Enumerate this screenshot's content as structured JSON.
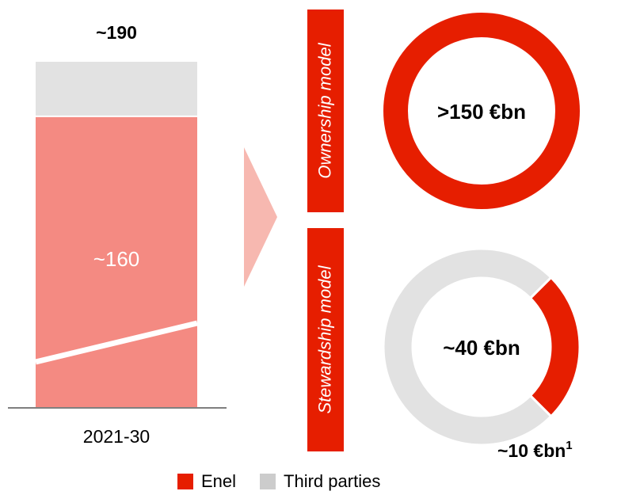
{
  "colors": {
    "enel": "#e61e00",
    "third_parties": "#e2e2e2",
    "bar_enel_share": "#f48a82"
  },
  "chart_data": [
    {
      "type": "bar",
      "categories": [
        "2021-30"
      ],
      "series": [
        {
          "name": "",
          "values": [
            160
          ]
        },
        {
          "name": "",
          "values": [
            30
          ]
        }
      ],
      "data_labels": [
        "~160"
      ],
      "total_label": "~190",
      "ylim": [
        0,
        190
      ]
    },
    {
      "type": "pie",
      "tag": "Ownership model",
      "center_label": ">150 €bn",
      "slices": [
        {
          "name": "Enel",
          "value": 150
        }
      ]
    },
    {
      "type": "pie",
      "tag": "Stewardship model",
      "center_label": "~40 €bn",
      "slices": [
        {
          "name": "Enel",
          "value": 10,
          "label": "~10 €bn",
          "footnote": "1"
        },
        {
          "name": "Third parties",
          "value": 30
        }
      ]
    }
  ],
  "legend": [
    {
      "name": "Enel",
      "color": "#e61e00"
    },
    {
      "name": "Third parties",
      "color": "#cccccc"
    }
  ]
}
